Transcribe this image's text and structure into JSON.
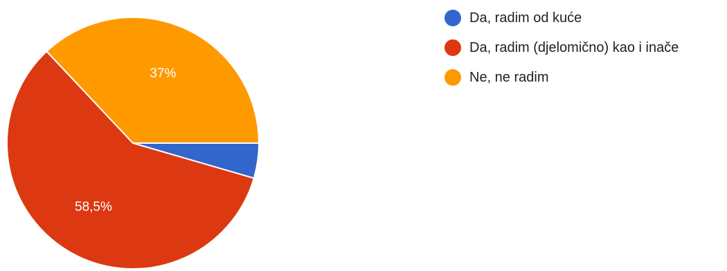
{
  "chart_data": {
    "type": "pie",
    "categories": [
      "Da, radim od kuće",
      "Da, radim (djelomično) kao i inače",
      "Ne, ne radim"
    ],
    "values": [
      4.5,
      58.5,
      37
    ],
    "data_labels": [
      "",
      "58,5%",
      "37%"
    ],
    "colors": [
      "#3366cc",
      "#dc3912",
      "#ff9900"
    ],
    "legend_position": "right"
  },
  "legend": {
    "items": [
      {
        "label": "Da, radim od kuće",
        "color": "#3366cc"
      },
      {
        "label": "Da, radim (djelomično) kao i inače",
        "color": "#dc3912"
      },
      {
        "label": "Ne, ne radim",
        "color": "#ff9900"
      }
    ]
  }
}
